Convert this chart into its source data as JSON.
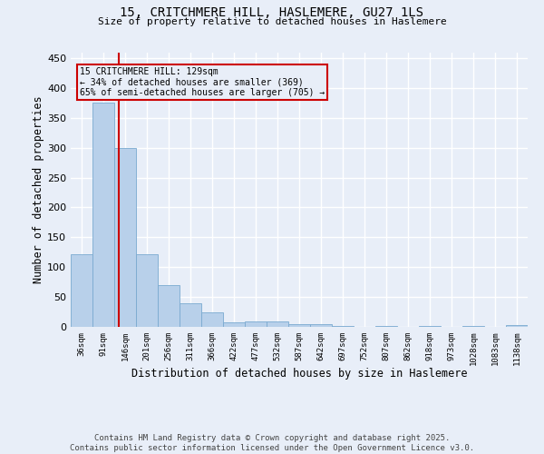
{
  "title1": "15, CRITCHMERE HILL, HASLEMERE, GU27 1LS",
  "title2": "Size of property relative to detached houses in Haslemere",
  "xlabel": "Distribution of detached houses by size in Haslemere",
  "ylabel": "Number of detached properties",
  "bar_color": "#b8d0ea",
  "bar_edge_color": "#7aaad0",
  "categories": [
    "36sqm",
    "91sqm",
    "146sqm",
    "201sqm",
    "256sqm",
    "311sqm",
    "366sqm",
    "422sqm",
    "477sqm",
    "532sqm",
    "587sqm",
    "642sqm",
    "697sqm",
    "752sqm",
    "807sqm",
    "862sqm",
    "918sqm",
    "973sqm",
    "1028sqm",
    "1083sqm",
    "1138sqm"
  ],
  "values": [
    122,
    375,
    300,
    122,
    70,
    40,
    25,
    7,
    9,
    9,
    5,
    5,
    1,
    0,
    1,
    0,
    1,
    0,
    2,
    0,
    3
  ],
  "ylim": [
    0,
    460
  ],
  "yticks": [
    0,
    50,
    100,
    150,
    200,
    250,
    300,
    350,
    400,
    450
  ],
  "property_line_x": 1.69,
  "property_line_color": "#cc0000",
  "annotation_text": "15 CRITCHMERE HILL: 129sqm\n← 34% of detached houses are smaller (369)\n65% of semi-detached houses are larger (705) →",
  "annotation_box_color": "#cc0000",
  "annotation_fontsize": 7,
  "background_color": "#e8eef8",
  "grid_color": "#ffffff",
  "footer": "Contains HM Land Registry data © Crown copyright and database right 2025.\nContains public sector information licensed under the Open Government Licence v3.0.",
  "footer_fontsize": 6.5
}
